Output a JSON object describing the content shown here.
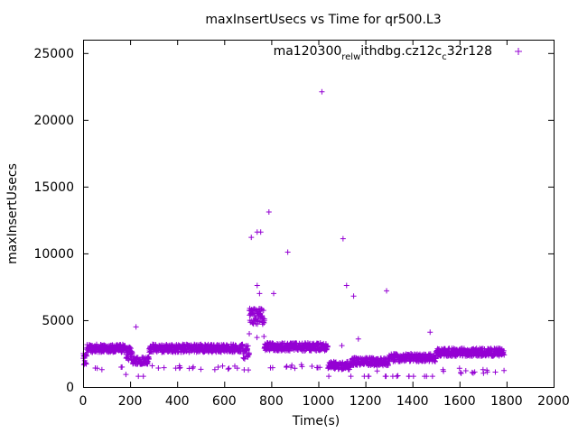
{
  "chart_data": {
    "type": "scatter",
    "title": "maxInsertUsecs vs Time for qr500.L3",
    "xlabel": "Time(s)",
    "ylabel": "maxInsertUsecs",
    "xlim": [
      0,
      2000
    ],
    "ylim": [
      0,
      26000
    ],
    "xticks": [
      0,
      200,
      400,
      600,
      800,
      1000,
      1200,
      1400,
      1600,
      1800,
      2000
    ],
    "yticks": [
      0,
      5000,
      10000,
      15000,
      20000,
      25000
    ],
    "series": [
      {
        "name": "ma120300_rel_withdbg.cz12c_c32r128",
        "legend_base": [
          "ma120300",
          "rel",
          "ithdbg.cz12c",
          "c",
          "32r128"
        ],
        "legend_subscripts": [
          "rel",
          "w",
          "c"
        ],
        "color": "#9400d3",
        "marker": "+",
        "segments": [
          {
            "from": 0,
            "to": 15,
            "center": 2000,
            "spread": 500
          },
          {
            "from": 15,
            "to": 180,
            "center": 2900,
            "spread": 300
          },
          {
            "from": 180,
            "to": 210,
            "center": 2500,
            "spread": 500
          },
          {
            "from": 210,
            "to": 280,
            "center": 2000,
            "spread": 300
          },
          {
            "from": 280,
            "to": 680,
            "center": 2900,
            "spread": 300
          },
          {
            "from": 680,
            "to": 705,
            "center": 2600,
            "spread": 500
          },
          {
            "from": 705,
            "to": 770,
            "center": 5300,
            "spread": 600
          },
          {
            "from": 770,
            "to": 1040,
            "center": 3000,
            "spread": 300
          },
          {
            "from": 1040,
            "to": 1140,
            "center": 1600,
            "spread": 300
          },
          {
            "from": 1140,
            "to": 1300,
            "center": 1900,
            "spread": 300
          },
          {
            "from": 1300,
            "to": 1500,
            "center": 2200,
            "spread": 300
          },
          {
            "from": 1500,
            "to": 1790,
            "center": 2600,
            "spread": 300
          }
        ],
        "outliers": [
          [
            225,
            4500
          ],
          [
            715,
            11200
          ],
          [
            740,
            11600
          ],
          [
            755,
            11600
          ],
          [
            740,
            7600
          ],
          [
            750,
            7000
          ],
          [
            790,
            13100
          ],
          [
            810,
            7000
          ],
          [
            870,
            10100
          ],
          [
            1015,
            22100
          ],
          [
            1105,
            11100
          ],
          [
            1120,
            7600
          ],
          [
            1150,
            6800
          ],
          [
            1290,
            7200
          ],
          [
            1475,
            4100
          ],
          [
            1170,
            3600
          ],
          [
            1100,
            3100
          ],
          [
            60,
            1400
          ],
          [
            80,
            1300
          ],
          [
            560,
            1300
          ],
          [
            620,
            1400
          ],
          [
            900,
            1400
          ],
          [
            1250,
            1200
          ],
          [
            1600,
            1400
          ],
          [
            1700,
            1300
          ]
        ]
      }
    ]
  }
}
